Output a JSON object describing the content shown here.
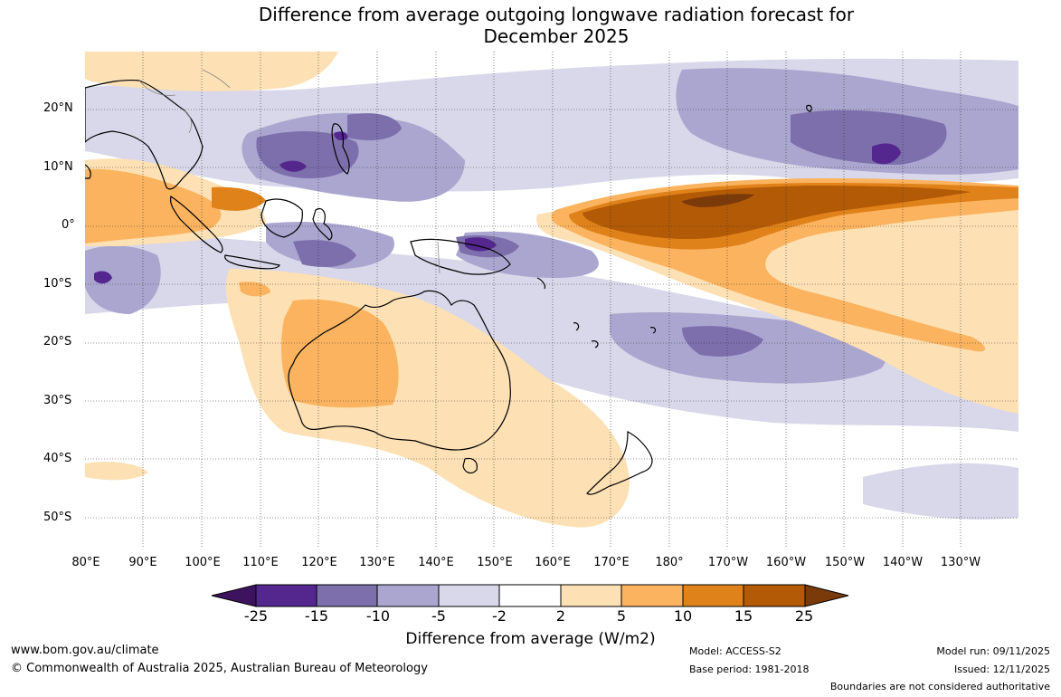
{
  "title": {
    "line1": "Difference from average outgoing longwave radiation forecast for",
    "line2": "December 2025"
  },
  "map": {
    "lat_labels": [
      "20°N",
      "10°N",
      "0°",
      "10°S",
      "20°S",
      "30°S",
      "40°S",
      "50°S"
    ],
    "lon_labels": [
      "80°E",
      "90°E",
      "100°E",
      "110°E",
      "120°E",
      "130°E",
      "140°E",
      "150°E",
      "160°E",
      "170°E",
      "180°",
      "170°W",
      "160°W",
      "150°W",
      "140°W",
      "130°W"
    ],
    "colors": {
      "n25": "#3d1360",
      "n15": "#54278f",
      "n10": "#7d6eac",
      "n5": "#aaa6cf",
      "n2": "#d8d8ea",
      "zero": "#ffffff",
      "p2": "#fde0b3",
      "p5": "#fbb35f",
      "p10": "#e0821a",
      "p15": "#b35a06",
      "p25": "#7a3a0a",
      "land": "#000000"
    }
  },
  "colorbar": {
    "ticks": [
      "-25",
      "-15",
      "-10",
      "-5",
      "-2",
      "2",
      "5",
      "10",
      "15",
      "25"
    ],
    "label": "Difference from average (W/m2)"
  },
  "footer": {
    "url": "www.bom.gov.au/climate",
    "copyright": "© Commonwealth of Australia 2025, Australian Bureau of Meteorology",
    "model": "Model: ACCESS-S2",
    "base_period": "Base period: 1981-2018",
    "model_run": "Model run: 09/11/2025",
    "issued": "Issued: 12/11/2025",
    "disclaimer": "Boundaries are not considered authoritative"
  }
}
